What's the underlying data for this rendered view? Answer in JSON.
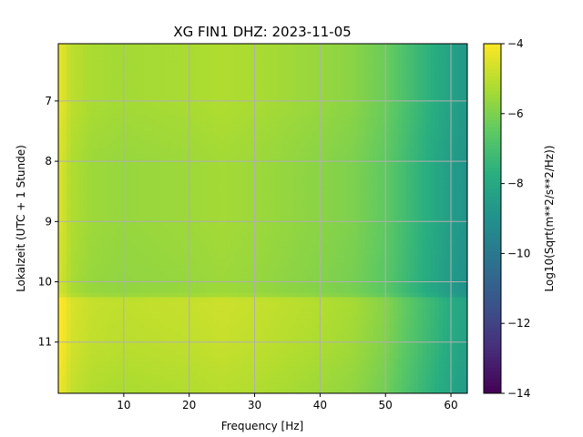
{
  "chart_data": {
    "type": "heatmap",
    "title": "XG FIN1  DHZ: 2023-11-05",
    "xlabel": "Frequency [Hz]",
    "ylabel": "Lokalzeit (UTC + 1 Stunde)",
    "xlim": [
      0,
      62.5
    ],
    "ylim": [
      11.85,
      6.05
    ],
    "y_inverted": true,
    "x_ticks": [
      10,
      20,
      30,
      40,
      50,
      60
    ],
    "y_ticks": [
      7,
      8,
      9,
      10,
      11
    ],
    "grid": true,
    "colormap": "viridis",
    "colorbar": {
      "label": "Log10(Sqrt(m**2/s**2/Hz))",
      "range": [
        -14,
        -4
      ],
      "ticks": [
        -14,
        -12,
        -10,
        -8,
        -6,
        -4
      ]
    },
    "frequency_profile": {
      "x": [
        0.5,
        1,
        2,
        5,
        10,
        20,
        25,
        30,
        40,
        45,
        50,
        53,
        56,
        60,
        62.5
      ],
      "values": [
        -4.4,
        -4.6,
        -5.0,
        -5.3,
        -5.4,
        -5.3,
        -5.2,
        -5.3,
        -5.6,
        -5.8,
        -6.3,
        -6.9,
        -7.5,
        -8.3,
        -8.7
      ]
    },
    "time_offsets": {
      "y": [
        6.05,
        7.0,
        8.0,
        9.0,
        10.0,
        10.2,
        10.3,
        11.0,
        11.5,
        11.85
      ],
      "values": [
        0.0,
        0.0,
        -0.2,
        -0.2,
        -0.3,
        -0.3,
        0.45,
        0.35,
        0.2,
        0.1
      ]
    }
  },
  "colors": {
    "grid": "#b0b0b0",
    "viridis_stops": [
      "#440154",
      "#472c7a",
      "#3b528b",
      "#2c728e",
      "#21918c",
      "#28ae80",
      "#5ec962",
      "#addc30",
      "#fde725"
    ]
  }
}
